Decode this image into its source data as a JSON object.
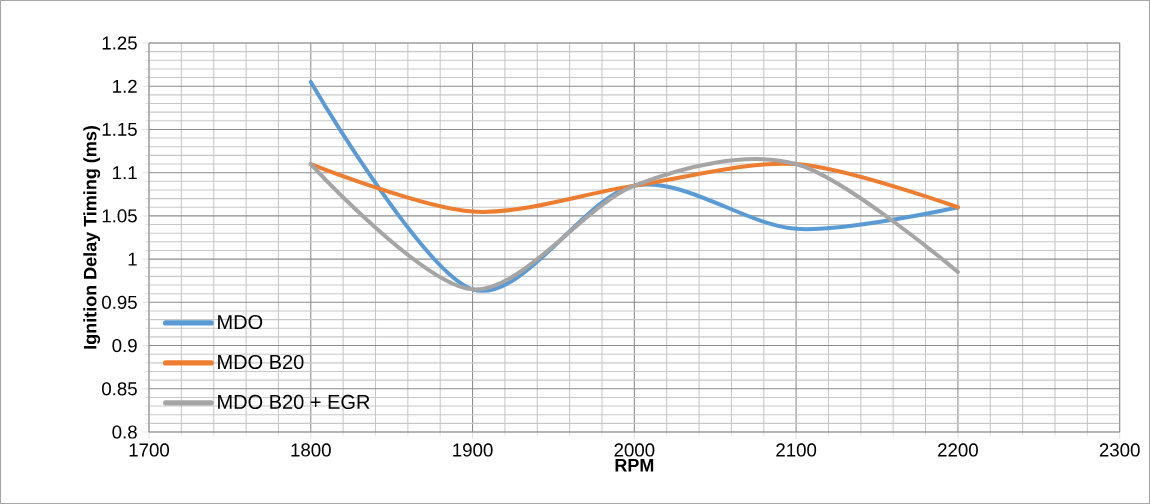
{
  "chart_data": {
    "type": "line",
    "xlabel": "RPM",
    "ylabel": "Ignition Delay Timing (ms)",
    "x": [
      1800,
      1900,
      2000,
      2100,
      2200
    ],
    "series": [
      {
        "name": "MDO",
        "color": "#5b9bd5",
        "values": [
          1.205,
          0.965,
          1.085,
          1.035,
          1.06
        ]
      },
      {
        "name": "MDO B20",
        "color": "#ed7d31",
        "values": [
          1.11,
          1.055,
          1.085,
          1.11,
          1.06
        ]
      },
      {
        "name": "MDO B20 + EGR",
        "color": "#a5a5a5",
        "values": [
          1.11,
          0.965,
          1.085,
          1.11,
          0.985
        ]
      }
    ],
    "xlim": [
      1700,
      2300
    ],
    "xticks": [
      1700,
      1800,
      1900,
      2000,
      2100,
      2200,
      2300
    ],
    "ylim": [
      0.8,
      1.25
    ],
    "yticks": [
      0.8,
      0.85,
      0.9,
      0.95,
      1,
      1.05,
      1.1,
      1.15,
      1.2,
      1.25
    ],
    "grid": true,
    "legend": "bottom left",
    "marker": "none",
    "line_style": "solid"
  }
}
